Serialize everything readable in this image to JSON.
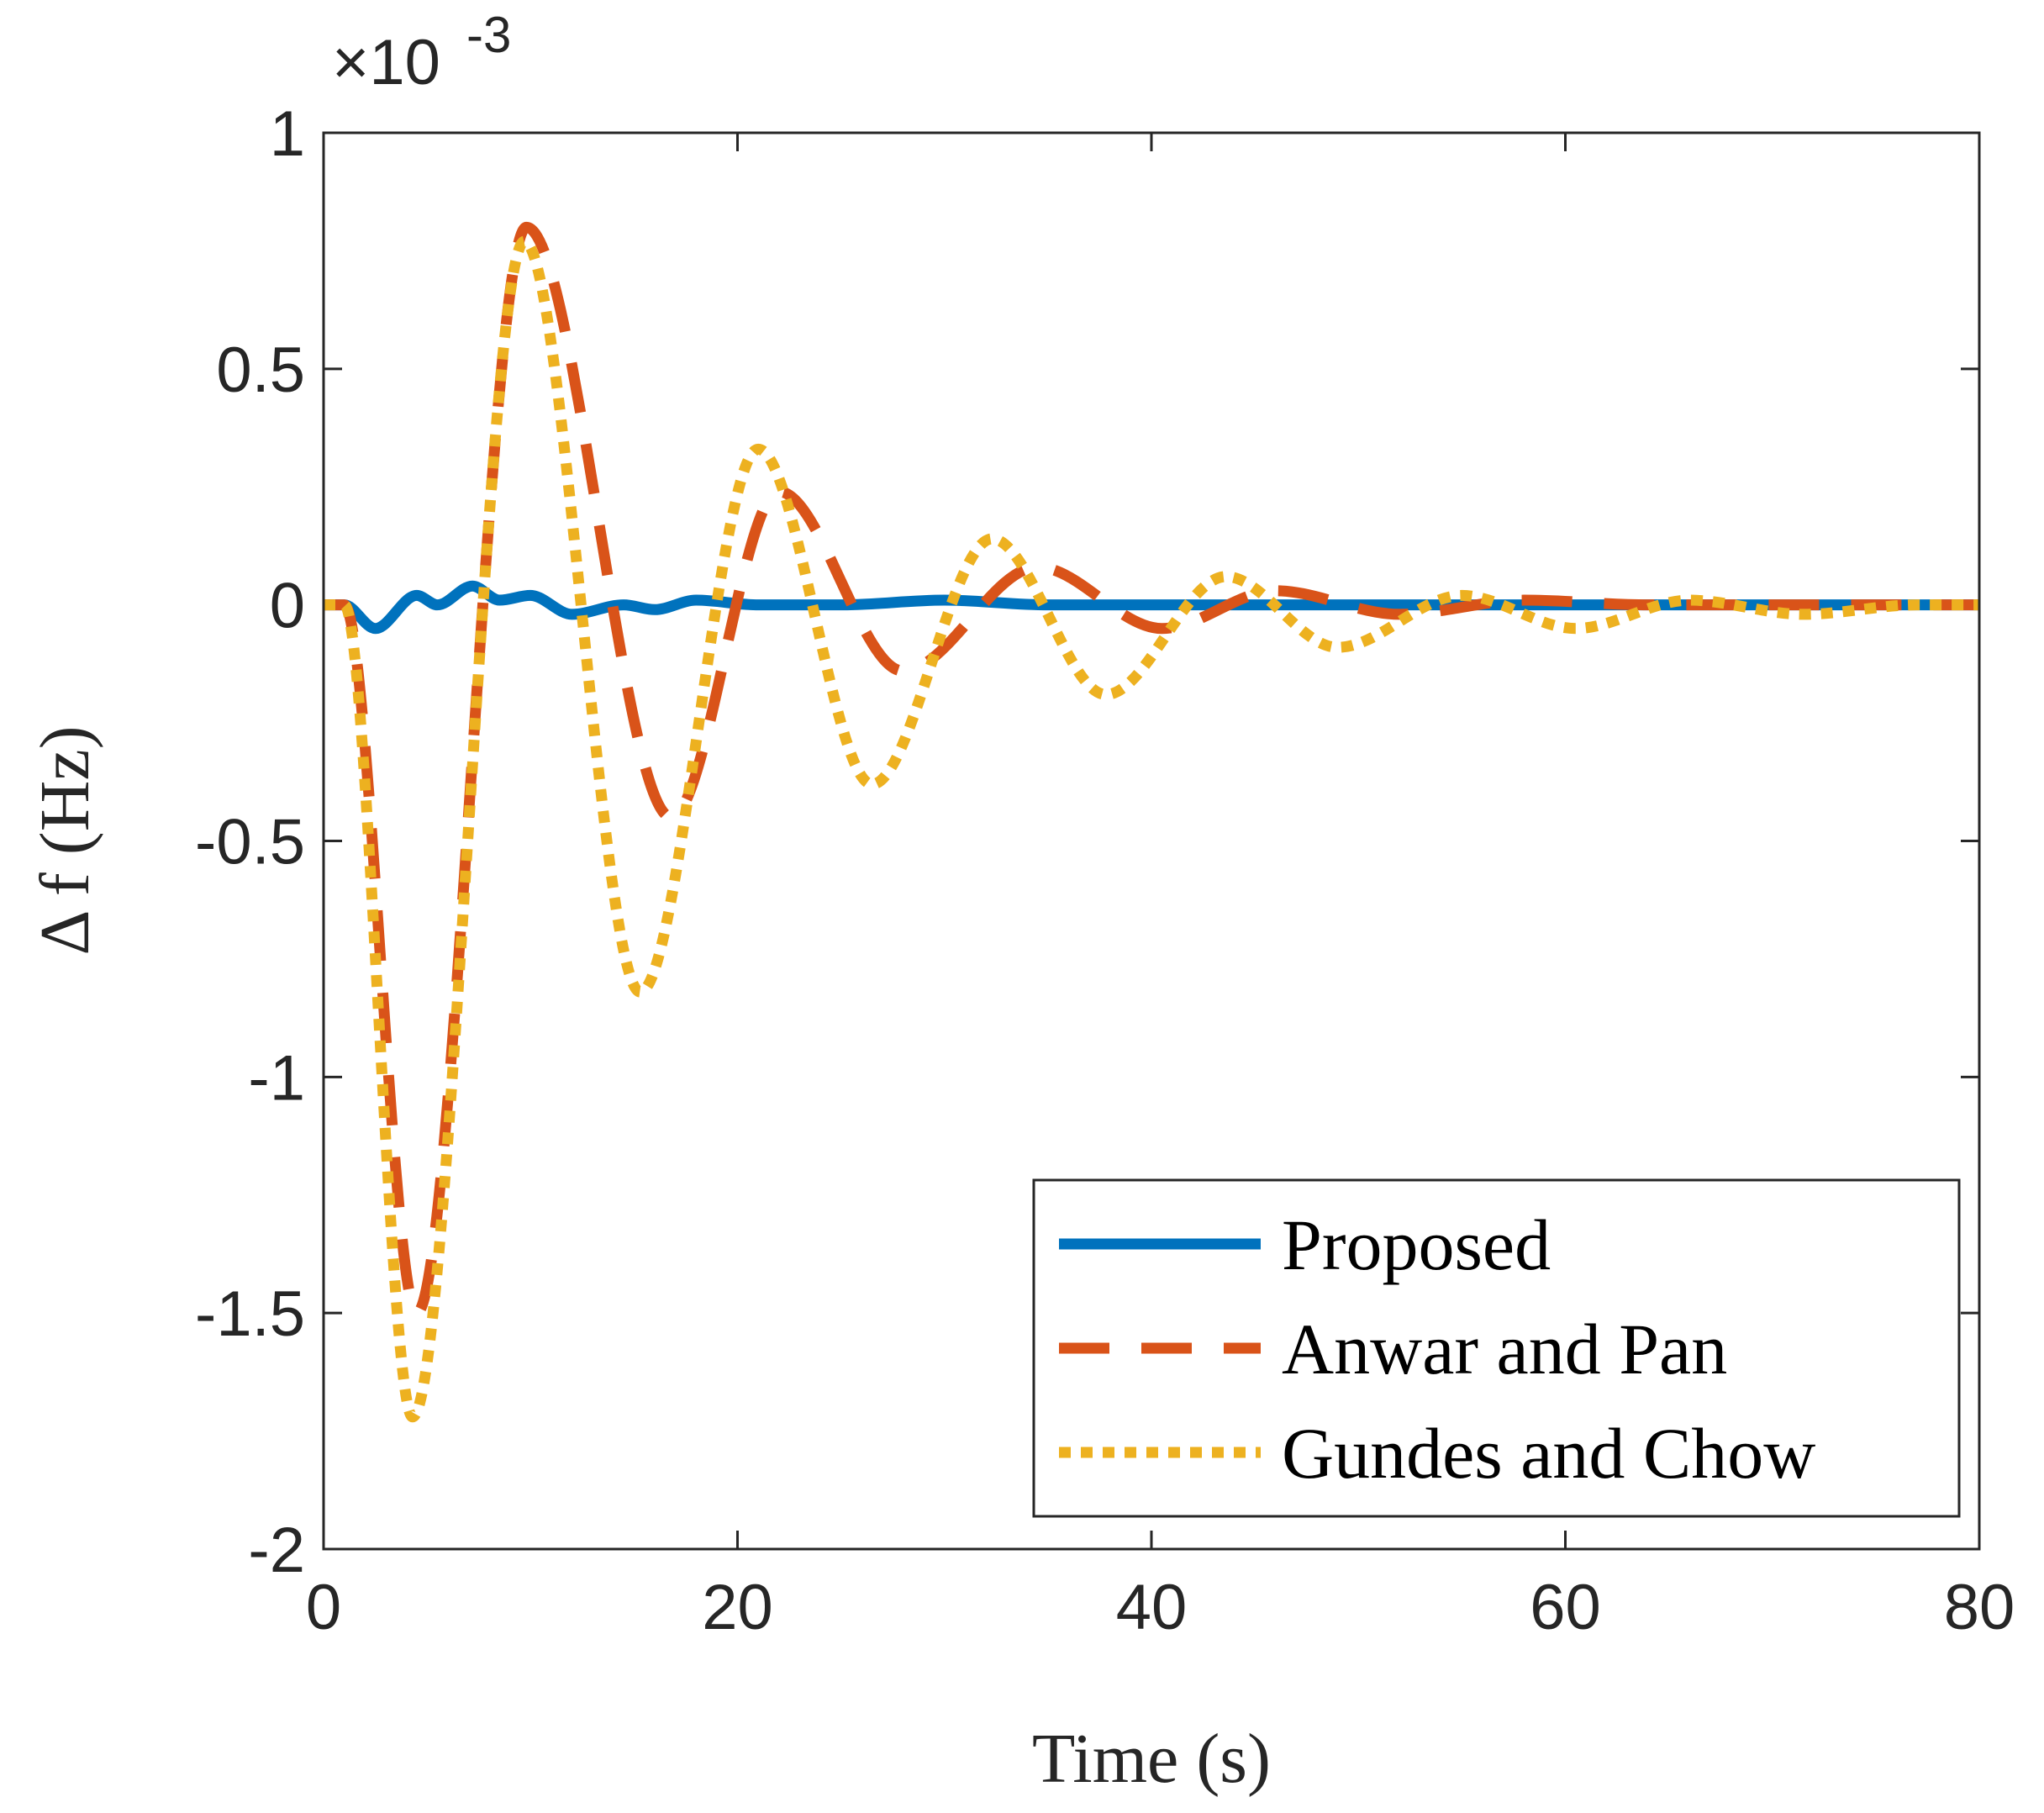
{
  "chart_data": {
    "type": "line",
    "x_label": "Time (s)",
    "y_label": "Δ f (Hz)",
    "y_multiplier": {
      "base": "×10",
      "exponent": "-3"
    },
    "xlim": [
      0,
      80
    ],
    "xticks": [
      0,
      20,
      40,
      60,
      80
    ],
    "ylim": [
      -2,
      1
    ],
    "yticks": [
      -2,
      -1.5,
      -1,
      -0.5,
      0,
      0.5,
      1
    ],
    "legend": "lower right",
    "series": [
      {
        "name": "Proposed",
        "color": "#0072bd",
        "style": "solid",
        "x": [
          0,
          1,
          2.5,
          4.5,
          5.5,
          7.2,
          8.5,
          10,
          12,
          14.5,
          16,
          18,
          21,
          25,
          30,
          35,
          80
        ],
        "values": [
          0,
          0,
          -0.05,
          0.02,
          0,
          0.04,
          0.01,
          0.02,
          -0.02,
          0,
          -0.01,
          0.01,
          0,
          0,
          0.01,
          0,
          0
        ]
      },
      {
        "name": "Anwar and Pan",
        "color": "#d95319",
        "style": "dashed",
        "x": [
          0,
          1,
          4.5,
          9.8,
          16.8,
          22,
          28,
          34.5,
          40.5,
          46,
          52,
          58,
          64,
          80
        ],
        "values": [
          0,
          0,
          -1.5,
          0.8,
          -0.45,
          0.24,
          -0.14,
          0.08,
          -0.05,
          0.03,
          -0.02,
          0.01,
          0,
          0
        ]
      },
      {
        "name": "Gundes and Chow",
        "color": "#edb120",
        "style": "dotted",
        "x": [
          0,
          1,
          4.3,
          9.7,
          15.3,
          21,
          26.5,
          32.3,
          37.8,
          43.6,
          49,
          55,
          60.5,
          66,
          71.5,
          77,
          80
        ],
        "values": [
          0,
          0,
          -1.72,
          0.77,
          -0.82,
          0.33,
          -0.38,
          0.14,
          -0.19,
          0.06,
          -0.09,
          0.02,
          -0.05,
          0.01,
          -0.02,
          0,
          0
        ]
      }
    ]
  }
}
